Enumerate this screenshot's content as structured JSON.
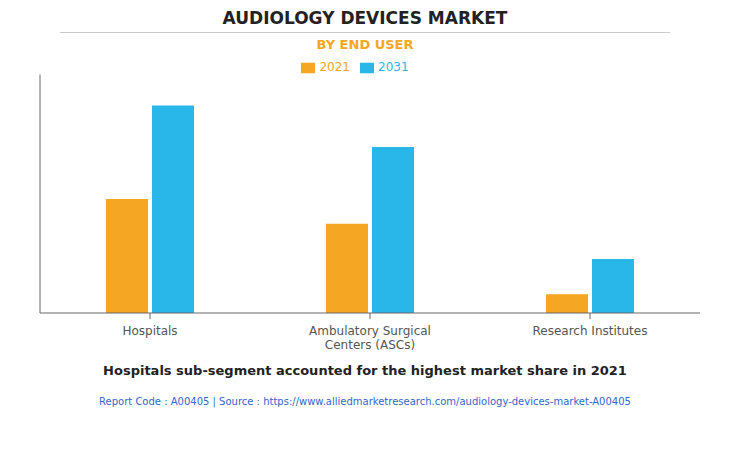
{
  "chart_data": {
    "type": "bar",
    "title": "AUDIOLOGY DEVICES MARKET",
    "subtitle": "BY END USER",
    "annotation": "Hospitals sub-segment accounted for the highest market share in 2021",
    "footer": "Report Code : A00405  |  Source : https://www.alliedmarketresearch.com/audiology-devices-market-A00405",
    "categories": [
      "Hospitals",
      "Ambulatory Surgical\nCenters (ASCs)",
      "Research Institutes"
    ],
    "series": [
      {
        "name": "2021",
        "color": "#F5A623",
        "values": [
          55,
          43,
          9
        ]
      },
      {
        "name": "2031",
        "color": "#29B6E8",
        "values": [
          100,
          80,
          26
        ]
      }
    ],
    "ylim": [
      0,
      115
    ],
    "grid": false,
    "legend": "top",
    "tick_labels": "x"
  }
}
